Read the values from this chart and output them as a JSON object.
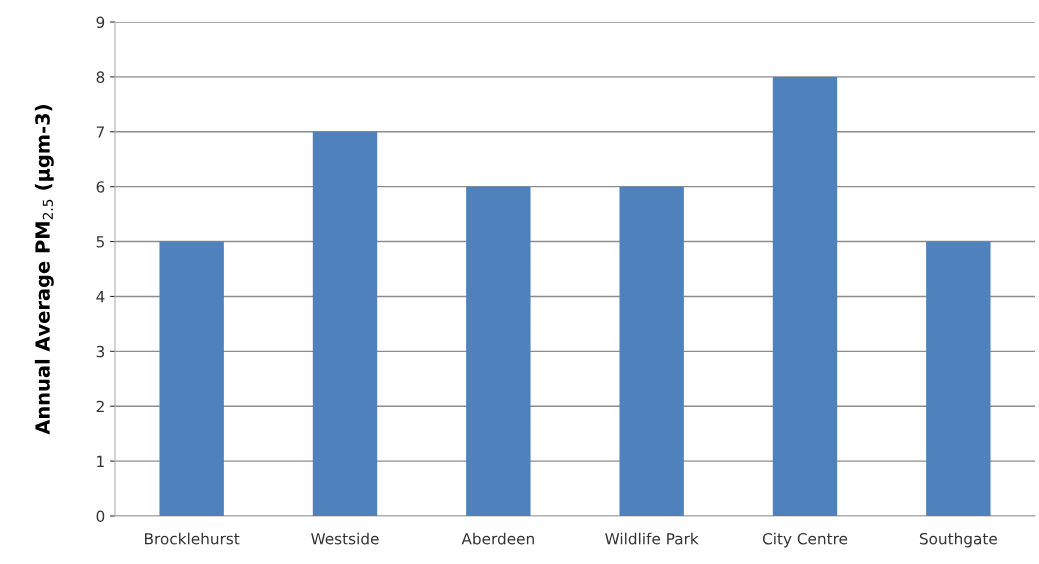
{
  "chart_data": {
    "type": "bar",
    "ylabel": "Annual Average PM$_{2.5}$ (µgm-3)",
    "categories": [
      "Brocklehurst",
      "Westside",
      "Aberdeen",
      "Wildlife Park",
      "City Centre",
      "Southgate"
    ],
    "values": [
      5,
      7,
      6,
      6,
      8,
      5
    ],
    "color": "#4f81bd",
    "ylim": [
      0,
      9
    ],
    "yticks": [
      0,
      1,
      2,
      3,
      4,
      5,
      6,
      7,
      8,
      9
    ],
    "grid": "y",
    "legend": false
  }
}
